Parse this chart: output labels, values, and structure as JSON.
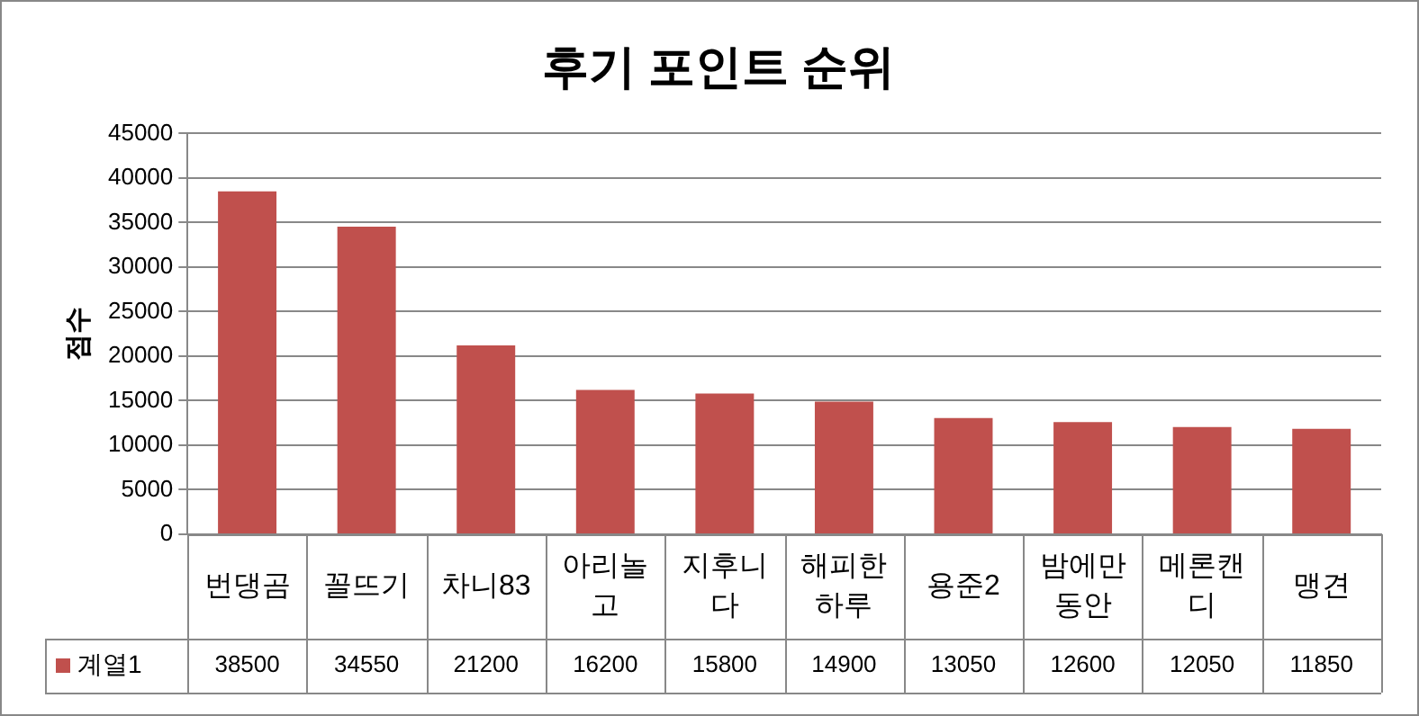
{
  "chart_data": {
    "type": "bar",
    "title": "후기 포인트 순위",
    "ylabel": "점수",
    "categories": [
      "번댕곰",
      "꼴뜨기",
      "차니83",
      "아리놀고",
      "지후니다",
      "해피한하루",
      "용준2",
      "밤에만동안",
      "메론캔디",
      "맹견"
    ],
    "series": [
      {
        "name": "계열1",
        "color": "#c0504d",
        "values": [
          38500,
          34550,
          21200,
          16200,
          15800,
          14900,
          13050,
          12600,
          12050,
          11850
        ]
      }
    ],
    "ylim": [
      0,
      45000
    ],
    "yticks": [
      0,
      5000,
      10000,
      15000,
      20000,
      25000,
      30000,
      35000,
      40000,
      45000
    ],
    "grid": "y",
    "data_labels": true,
    "legend": "bottom"
  }
}
